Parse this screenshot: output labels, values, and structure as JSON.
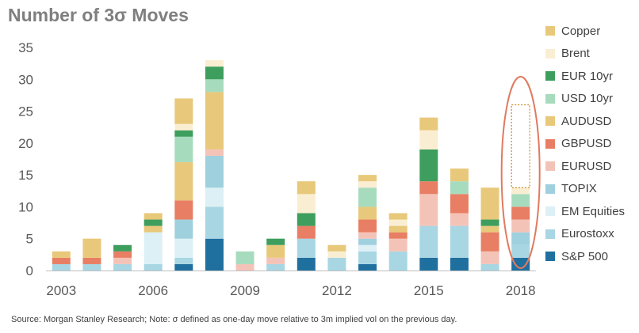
{
  "chart_data": {
    "type": "bar",
    "stacked": true,
    "title": "Number of 3σ Moves",
    "x": [
      2003,
      2004,
      2005,
      2006,
      2007,
      2008,
      2009,
      2010,
      2011,
      2012,
      2013,
      2014,
      2015,
      2016,
      2017,
      2018
    ],
    "x_tick_labels": [
      "2003",
      "2006",
      "2009",
      "2012",
      "2015",
      "2018"
    ],
    "x_tick_values": [
      2003,
      2006,
      2009,
      2012,
      2015,
      2018
    ],
    "ylim": [
      0,
      35
    ],
    "y_ticks": [
      0,
      5,
      10,
      15,
      20,
      25,
      30,
      35
    ],
    "grid": false,
    "legend_position": "right",
    "series": [
      {
        "name": "S&P 500",
        "color": "#1f6f9f",
        "values": [
          0,
          0,
          0,
          0,
          1,
          5,
          0,
          0,
          2,
          0,
          1,
          0,
          2,
          2,
          0,
          2
        ]
      },
      {
        "name": "Eurostoxx",
        "color": "#a8d6e3",
        "values": [
          1,
          1,
          1,
          1,
          1,
          5,
          0,
          1,
          3,
          2,
          2,
          3,
          5,
          5,
          1,
          2
        ]
      },
      {
        "name": "EM Equities",
        "color": "#dcf0f5",
        "values": [
          0,
          0,
          0,
          5,
          3,
          3,
          0,
          0,
          0,
          0,
          1,
          0,
          0,
          0,
          0,
          0
        ]
      },
      {
        "name": "TOPIX",
        "color": "#9fd0de",
        "values": [
          0,
          0,
          0,
          0,
          3,
          5,
          0,
          0,
          0,
          0,
          1,
          0,
          0,
          0,
          0,
          2
        ]
      },
      {
        "name": "EURUSD",
        "color": "#f4c3b8",
        "values": [
          0,
          0,
          1,
          0,
          0,
          1,
          1,
          1,
          0,
          0,
          1,
          2,
          5,
          2,
          2,
          2
        ]
      },
      {
        "name": "GBPUSD",
        "color": "#e87e63",
        "values": [
          1,
          1,
          1,
          0,
          3,
          0,
          0,
          0,
          2,
          0,
          2,
          1,
          2,
          3,
          3,
          2
        ]
      },
      {
        "name": "AUDUSD",
        "color": "#e8c87a",
        "values": [
          1,
          3,
          0,
          1,
          6,
          9,
          0,
          2,
          0,
          0,
          2,
          1,
          0,
          0,
          1,
          0
        ]
      },
      {
        "name": "USD 10yr",
        "color": "#a7dbbe",
        "values": [
          0,
          0,
          0,
          0,
          4,
          2,
          2,
          0,
          0,
          0,
          3,
          0,
          0,
          2,
          0,
          2
        ]
      },
      {
        "name": "EUR 10yr",
        "color": "#3e9e5e",
        "values": [
          0,
          0,
          1,
          1,
          1,
          2,
          0,
          1,
          2,
          0,
          0,
          0,
          5,
          0,
          1,
          0
        ]
      },
      {
        "name": "Brent",
        "color": "#faeed2",
        "values": [
          0,
          0,
          0,
          0,
          1,
          1,
          0,
          0,
          3,
          1,
          1,
          1,
          3,
          0,
          0,
          1
        ]
      },
      {
        "name": "Copper",
        "color": "#e8c87a",
        "values": [
          0,
          0,
          0,
          1,
          4,
          0,
          0,
          0,
          2,
          1,
          1,
          1,
          2,
          2,
          5,
          0
        ]
      }
    ],
    "projected_2018_top": 26,
    "highlight_year": 2018,
    "highlight_color": "#e07a5f"
  },
  "source": "Source: Morgan Stanley Research; Note: σ defined as one-day move relative to 3m implied vol on the previous day."
}
